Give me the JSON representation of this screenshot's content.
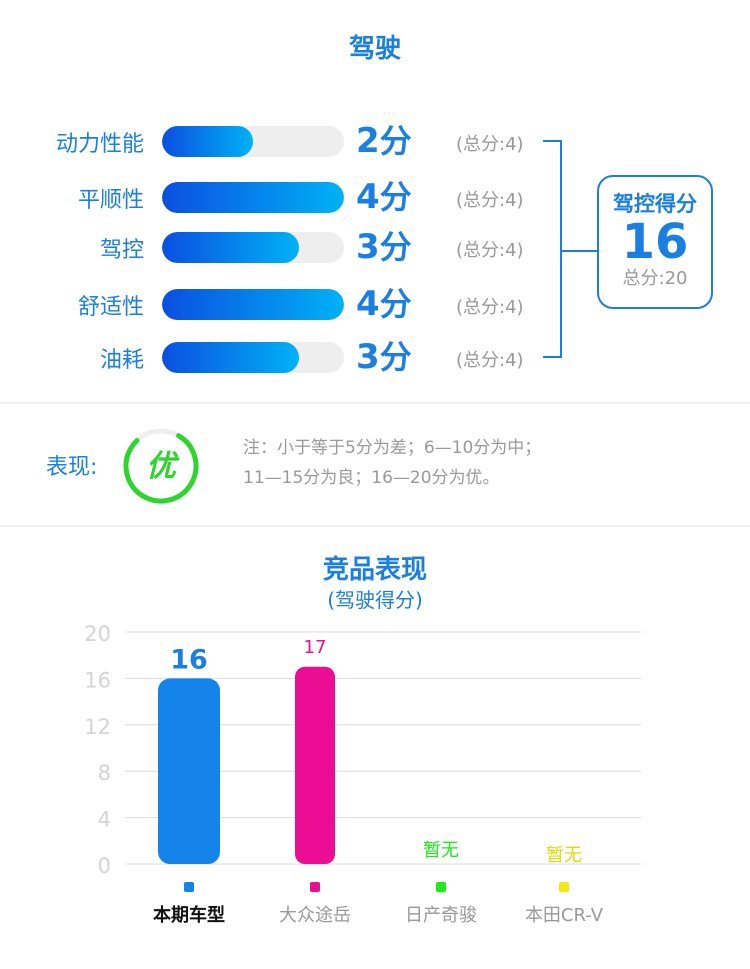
{
  "driving": {
    "title": "驾驶",
    "items": [
      {
        "label": "动力性能",
        "score": 2,
        "unit": "分",
        "max_text": "(总分:4)",
        "max": 4
      },
      {
        "label": "平顺性",
        "score": 4,
        "unit": "分",
        "max_text": "(总分:4)",
        "max": 4
      },
      {
        "label": "驾控",
        "score": 3,
        "unit": "分",
        "max_text": "(总分:4)",
        "max": 4
      },
      {
        "label": "舒适性",
        "score": 4,
        "unit": "分",
        "max_text": "(总分:4)",
        "max": 4
      },
      {
        "label": "油耗",
        "score": 3,
        "unit": "分",
        "max_text": "(总分:4)",
        "max": 4
      }
    ],
    "total": {
      "label": "驾控得分",
      "value": "16",
      "max_text": "总分:20"
    },
    "bar_gradient": [
      "#0b4fe0",
      "#00b2f6"
    ],
    "accent": "#1a7fe0"
  },
  "performance": {
    "label": "表现:",
    "badge": "优",
    "badge_color": "#2fd52f",
    "note_line1": "注：小于等于5分为差；6—10分为中；",
    "note_line2": "11—15分为良；16—20分为优。"
  },
  "chart_data": {
    "type": "bar",
    "title": "竞品表现",
    "subtitle": "(驾驶得分)",
    "ylim": [
      0,
      20
    ],
    "yticks": [
      "20",
      "16",
      "12",
      "8",
      "4",
      "0"
    ],
    "grid": true,
    "categories": [
      "本期车型",
      "大众途岳",
      "日产奇骏",
      "本田CR-V"
    ],
    "values": [
      16,
      17,
      null,
      null
    ],
    "value_labels": [
      "16",
      "17",
      "暂无",
      "暂无"
    ],
    "colors": [
      "#1483ea",
      "#ec0d95",
      "#1bea1b",
      "#f2ea10"
    ],
    "highlight_index": 0
  }
}
